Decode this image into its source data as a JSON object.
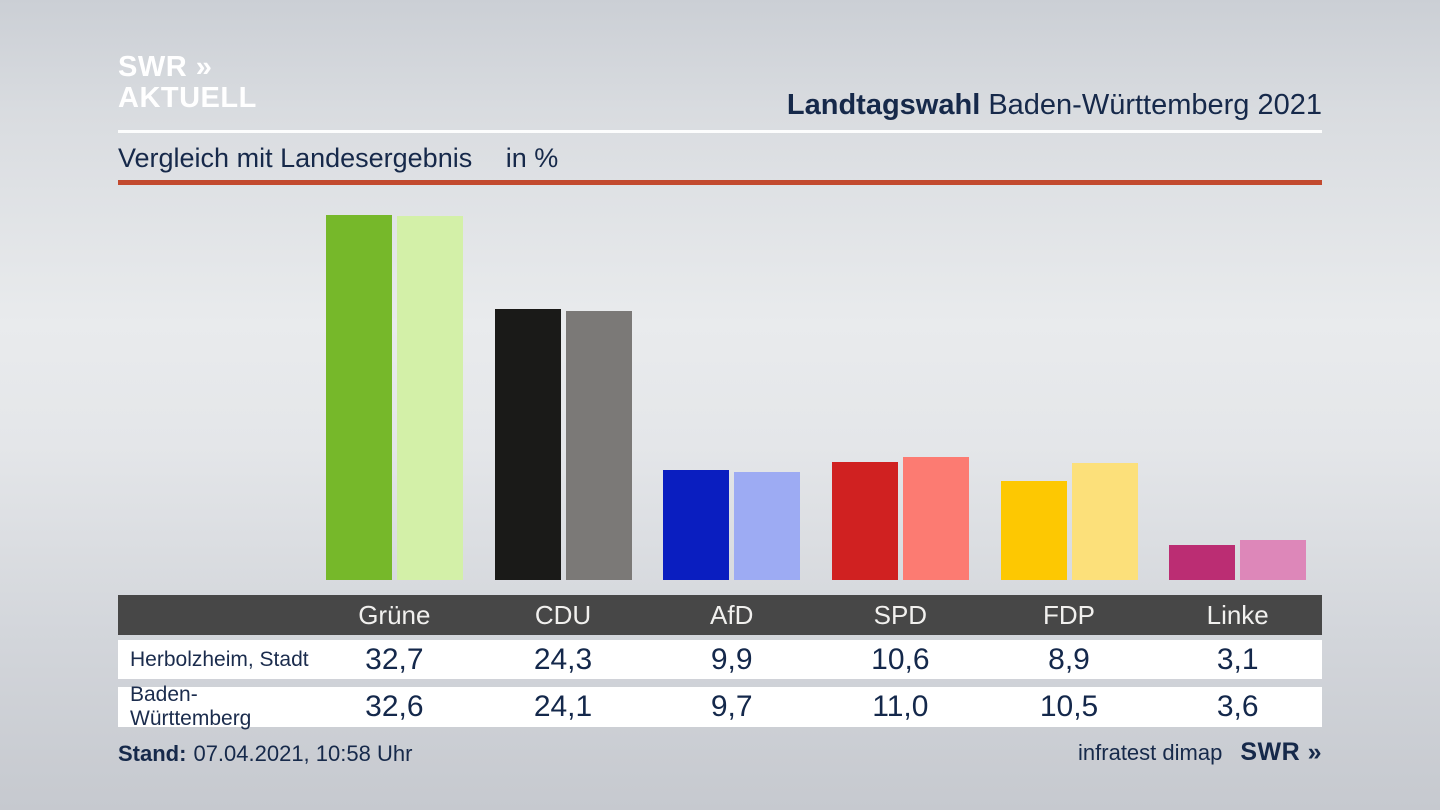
{
  "header": {
    "logo_line1": "SWR »",
    "logo_line2": "AKTUELL",
    "title_bold": "Landtagswahl",
    "title_rest": "Baden-Württemberg 2021"
  },
  "subtitle": {
    "text": "Vergleich mit Landesergebnis",
    "unit": "in %"
  },
  "chart_data": {
    "type": "bar",
    "title": "Vergleich mit Landesergebnis in %",
    "categories": [
      "Grüne",
      "CDU",
      "AfD",
      "SPD",
      "FDP",
      "Linke"
    ],
    "series": [
      {
        "name": "Herbolzheim, Stadt",
        "values": [
          32.7,
          24.3,
          9.9,
          10.6,
          8.9,
          3.1
        ]
      },
      {
        "name": "Baden-Württemberg",
        "values": [
          32.6,
          24.1,
          9.7,
          11.0,
          10.5,
          3.6
        ]
      }
    ],
    "colors": [
      {
        "party": "Grüne",
        "primary": "#76b82a",
        "secondary": "#d3f0a8"
      },
      {
        "party": "CDU",
        "primary": "#1a1a18",
        "secondary": "#7b7977"
      },
      {
        "party": "AfD",
        "primary": "#0a1ec0",
        "secondary": "#9dabf3"
      },
      {
        "party": "SPD",
        "primary": "#d02121",
        "secondary": "#fc7b72"
      },
      {
        "party": "FDP",
        "primary": "#fdc802",
        "secondary": "#fce07a"
      },
      {
        "party": "Linke",
        "primary": "#bb2d73",
        "secondary": "#dd87b9"
      }
    ],
    "value_format": "german-decimal-comma-1dp",
    "ylim": [
      0,
      33
    ],
    "grid": false,
    "legend_position": "table-below"
  },
  "footer": {
    "stand_label": "Stand:",
    "stand_value": "07.04.2021, 10:58 Uhr",
    "source": "infratest dimap",
    "logo": "SWR »"
  },
  "accent_colors": {
    "rule_red": "#c24a2f",
    "navy": "#16294a",
    "table_header_bg": "#474747"
  }
}
